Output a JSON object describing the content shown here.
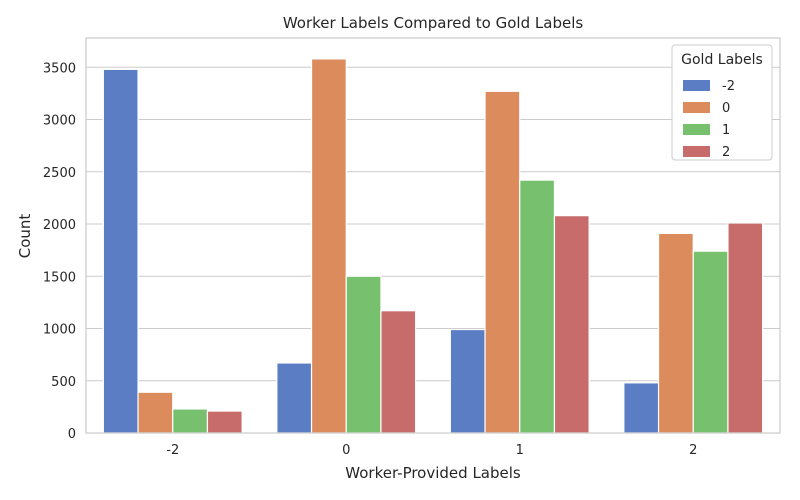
{
  "chart_data": {
    "type": "bar",
    "title": "Worker Labels Compared to Gold Labels",
    "xlabel": "Worker-Provided Labels",
    "ylabel": "Count",
    "categories": [
      "-2",
      "0",
      "1",
      "2"
    ],
    "ylim": [
      0,
      3780
    ],
    "yticks": [
      0,
      500,
      1000,
      1500,
      2000,
      2500,
      3000,
      3500
    ],
    "grid": true,
    "legend": {
      "title": "Gold Labels",
      "position": "top-right"
    },
    "series": [
      {
        "name": "-2",
        "color": "#5a7dc4",
        "values": [
          3480,
          670,
          990,
          480
        ]
      },
      {
        "name": "0",
        "color": "#dc8b5c",
        "values": [
          390,
          3580,
          3270,
          1910
        ]
      },
      {
        "name": "1",
        "color": "#76c06e",
        "values": [
          230,
          1500,
          2420,
          1740
        ]
      },
      {
        "name": "2",
        "color": "#c76b6b",
        "values": [
          210,
          1170,
          2080,
          2010
        ]
      }
    ]
  }
}
